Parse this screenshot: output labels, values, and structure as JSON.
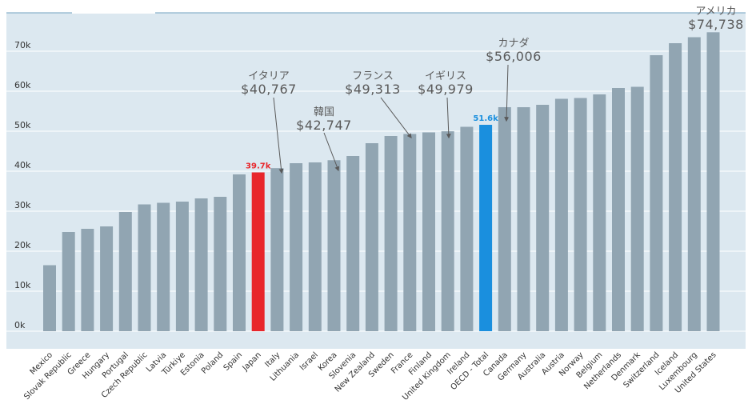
{
  "chart_data": {
    "type": "bar",
    "categories": [
      "Mexico",
      "Slovak Republic",
      "Greece",
      "Hungary",
      "Portugal",
      "Czech Republic",
      "Latvia",
      "Türkiye",
      "Estonia",
      "Poland",
      "Spain",
      "Japan",
      "Italy",
      "Lithuania",
      "Israel",
      "Korea",
      "Slovenia",
      "New Zealand",
      "Sweden",
      "France",
      "Finland",
      "United Kingdom",
      "Ireland",
      "OECD - Total",
      "Canada",
      "Germany",
      "Australia",
      "Austria",
      "Norway",
      "Belgium",
      "Netherlands",
      "Denmark",
      "Switzerland",
      "Iceland",
      "Luxembourg",
      "United States"
    ],
    "values": [
      16500,
      24800,
      25600,
      26200,
      29800,
      31700,
      32100,
      32400,
      33200,
      33600,
      39200,
      39700,
      40767,
      42000,
      42200,
      42747,
      43800,
      47000,
      48800,
      49313,
      49700,
      49979,
      51100,
      51600,
      56006,
      56000,
      56600,
      58100,
      58300,
      59200,
      60800,
      61100,
      69000,
      72000,
      73500,
      74738
    ],
    "ylim": [
      0,
      80000
    ],
    "yticks": [
      "0k",
      "10k",
      "20k",
      "30k",
      "40k",
      "50k",
      "60k",
      "70k"
    ],
    "title": "",
    "xlabel": "",
    "ylabel": "",
    "grid": true,
    "colors": {
      "default": "#91a5b2",
      "Japan": "#e8262b",
      "OECD - Total": "#1a8fde",
      "plot_bg": "#dce8f0",
      "grid": "#ffffff",
      "japan_label": "#e8262b",
      "oecd_label": "#1a8fde",
      "annotation": "#595959",
      "top_line": "#6f9fbf"
    },
    "value_labels": [
      {
        "category": "Japan",
        "text": "39.7k"
      },
      {
        "category": "OECD - Total",
        "text": "51.6k"
      }
    ],
    "annotations": [
      {
        "category": "Italy",
        "name": "イタリア",
        "value": "$40,767"
      },
      {
        "category": "Korea",
        "name": "韓国",
        "value": "$42,747"
      },
      {
        "category": "France",
        "name": "フランス",
        "value": "$49,313"
      },
      {
        "category": "United Kingdom",
        "name": "イギリス",
        "value": "$49,979"
      },
      {
        "category": "Canada",
        "name": "カナダ",
        "value": "$56,006"
      },
      {
        "category": "United States",
        "name": "アメリカ",
        "value": "$74,738"
      }
    ]
  }
}
